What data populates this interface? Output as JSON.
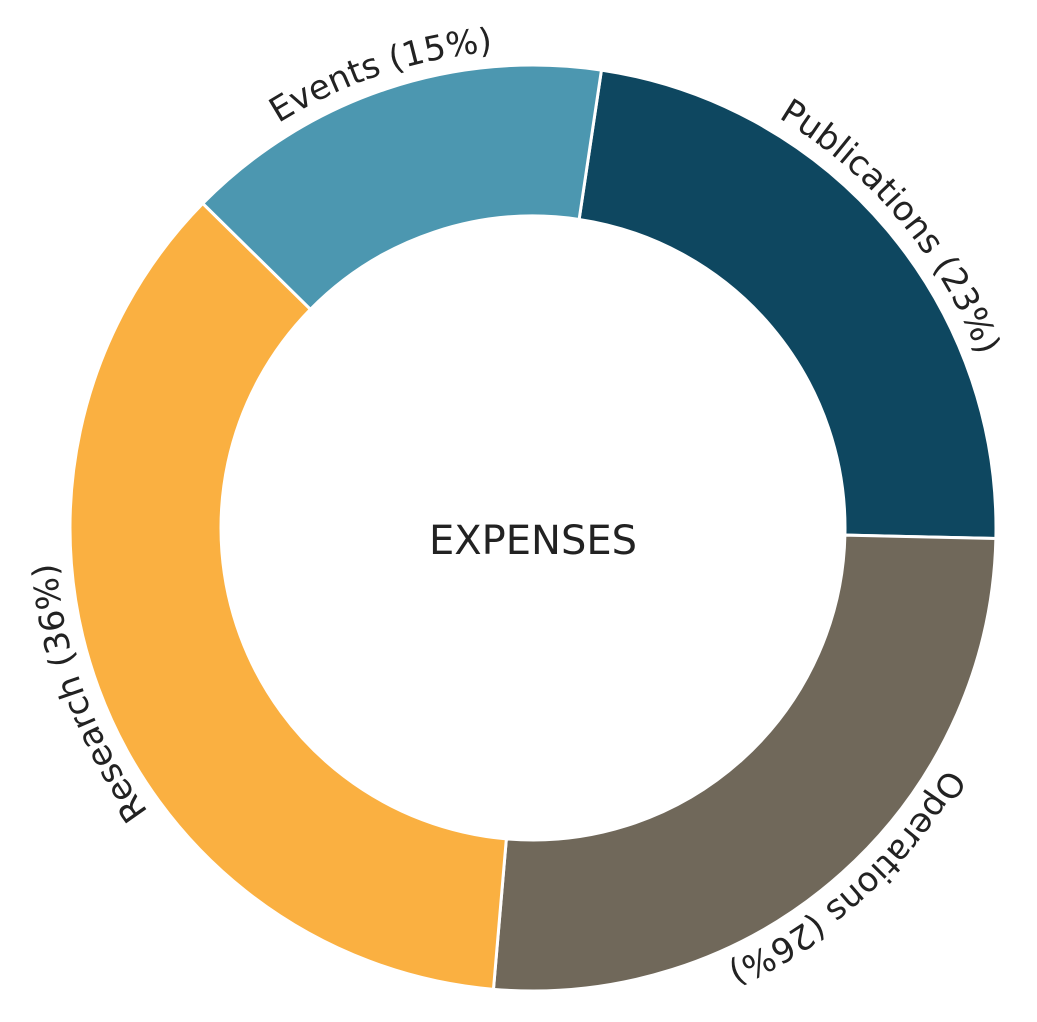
{
  "chart_data": {
    "type": "pie",
    "center_label": "EXPENSES",
    "slices": [
      {
        "label": "Publications (23%)",
        "value": 23,
        "color": "#0E4760"
      },
      {
        "label": "Operations (26%)",
        "value": 26,
        "color": "#70685A"
      },
      {
        "label": "Research (36%)",
        "value": 36,
        "color": "#FAB041"
      },
      {
        "label": "Events (15%)",
        "value": 15,
        "color": "#4C97B0"
      }
    ]
  }
}
